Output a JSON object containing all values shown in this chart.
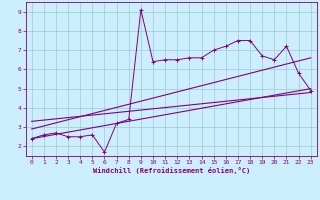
{
  "title": "",
  "xlabel": "Windchill (Refroidissement éolien,°C)",
  "ylabel": "",
  "bg_color": "#cceeff",
  "line_color": "#800080",
  "xlim": [
    -0.5,
    23.5
  ],
  "ylim": [
    1.5,
    9.5
  ],
  "xticks": [
    0,
    1,
    2,
    3,
    4,
    5,
    6,
    7,
    8,
    9,
    10,
    11,
    12,
    13,
    14,
    15,
    16,
    17,
    18,
    19,
    20,
    21,
    22,
    23
  ],
  "yticks": [
    2,
    3,
    4,
    5,
    6,
    7,
    8,
    9
  ],
  "grid_color": "#99cccc",
  "line1_x": [
    0,
    1,
    2,
    3,
    4,
    5,
    6,
    7,
    8,
    9,
    10,
    11,
    12,
    13,
    14,
    15,
    16,
    17,
    18,
    19,
    20,
    21,
    22,
    23
  ],
  "line1_y": [
    2.4,
    2.6,
    2.7,
    2.5,
    2.5,
    2.6,
    1.7,
    3.2,
    3.4,
    9.1,
    6.4,
    6.5,
    6.5,
    6.6,
    6.6,
    7.0,
    7.2,
    7.5,
    7.5,
    6.7,
    6.5,
    7.2,
    5.8,
    4.9
  ],
  "line2_x": [
    0,
    23
  ],
  "line2_y": [
    2.4,
    5.0
  ],
  "line3_x": [
    0,
    23
  ],
  "line3_y": [
    2.9,
    6.6
  ],
  "line4_x": [
    0,
    23
  ],
  "line4_y": [
    3.3,
    4.8
  ]
}
